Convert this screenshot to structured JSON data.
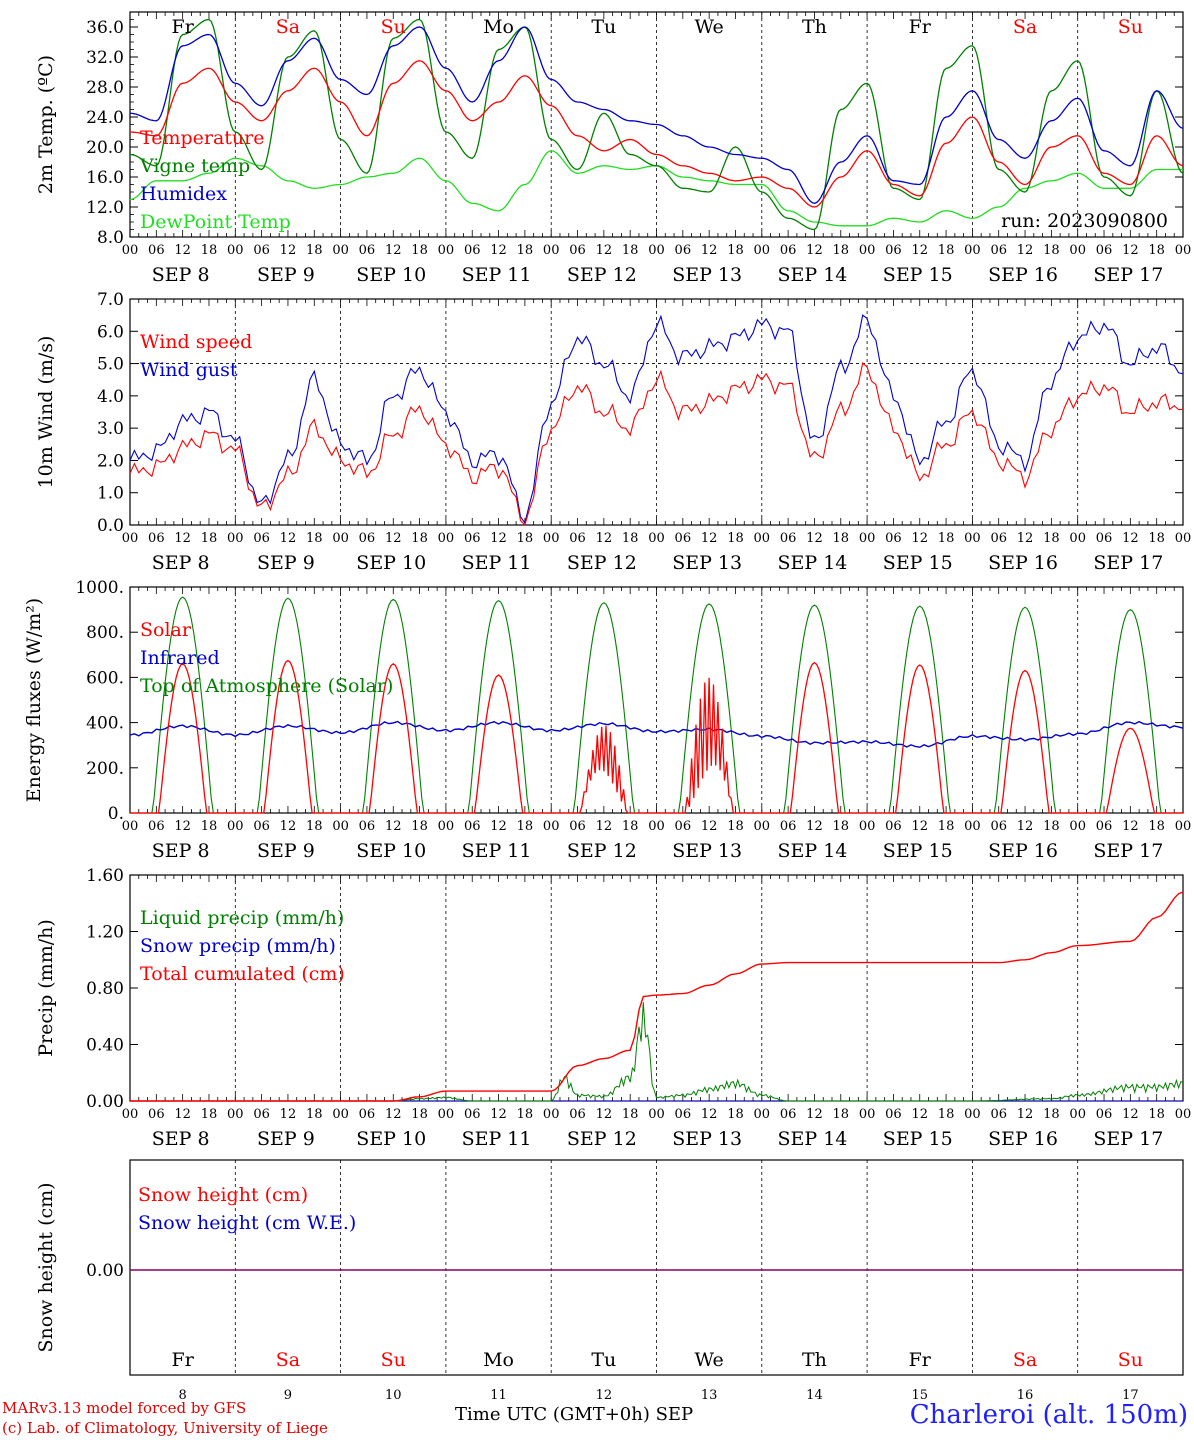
{
  "chart_data": [
    {
      "type": "line",
      "id": "temperature",
      "ylabel": "2m Temp. (ºC)",
      "ylim": [
        8.0,
        38.0
      ],
      "yticks": [
        "8.0",
        "12.0",
        "16.0",
        "20.0",
        "24.0",
        "28.0",
        "32.0",
        "36.0"
      ],
      "days": [
        "Fr",
        "Sa",
        "Su",
        "Mo",
        "Tu",
        "We",
        "Th",
        "Fr",
        "Sa",
        "Su"
      ],
      "annotation": "run: 2023090800",
      "x_hours": [
        0,
        6,
        12,
        18,
        24,
        30,
        36,
        42,
        48,
        54,
        60,
        66,
        72,
        78,
        84,
        90,
        96,
        102,
        108,
        114,
        120,
        126,
        132,
        138,
        144,
        150,
        156,
        162,
        168,
        174,
        180,
        186,
        192,
        198,
        204,
        210,
        216,
        222,
        228,
        234,
        240
      ],
      "series": [
        {
          "name": "Temperature",
          "color": "#ff0000",
          "values": [
            22.0,
            21.5,
            28.5,
            30.5,
            26.0,
            23.5,
            27.5,
            30.5,
            26.0,
            21.5,
            28.5,
            31.5,
            27.5,
            23.5,
            26.0,
            29.5,
            25.5,
            21.5,
            19.5,
            21.0,
            19.0,
            17.5,
            16.5,
            15.5,
            16.0,
            14.5,
            12.0,
            16.0,
            19.5,
            15.0,
            13.5,
            20.5,
            24.0,
            18.0,
            15.0,
            20.0,
            21.5,
            16.5,
            15.0,
            21.5,
            17.5
          ]
        },
        {
          "name": "Vigne temp",
          "color": "#008000",
          "values": [
            19.0,
            17.5,
            35.0,
            37.0,
            22.0,
            17.0,
            32.0,
            35.5,
            21.0,
            16.5,
            34.5,
            37.0,
            22.0,
            18.5,
            33.0,
            36.0,
            21.0,
            17.0,
            24.5,
            19.0,
            17.5,
            14.5,
            14.0,
            20.0,
            14.0,
            10.5,
            9.0,
            25.0,
            28.5,
            14.5,
            13.0,
            30.5,
            33.5,
            17.0,
            14.0,
            27.5,
            31.5,
            16.0,
            13.5,
            27.5,
            16.5
          ]
        },
        {
          "name": "Humidex",
          "color": "#0000cc",
          "values": [
            24.5,
            23.5,
            33.5,
            35.0,
            28.5,
            25.5,
            31.5,
            34.5,
            29.0,
            27.0,
            33.5,
            36.0,
            30.5,
            26.0,
            31.5,
            36.0,
            29.0,
            26.0,
            25.0,
            23.5,
            23.0,
            21.5,
            20.0,
            19.0,
            18.5,
            17.0,
            12.5,
            18.0,
            21.5,
            15.5,
            15.0,
            24.0,
            27.5,
            21.0,
            18.5,
            23.5,
            26.5,
            19.5,
            17.5,
            27.5,
            22.5
          ]
        },
        {
          "name": "DewPoint Temp",
          "color": "#22dd22",
          "values": [
            13.0,
            15.5,
            15.5,
            16.5,
            18.5,
            17.5,
            15.5,
            14.5,
            15.0,
            16.0,
            16.5,
            18.5,
            15.5,
            12.5,
            11.5,
            15.0,
            19.5,
            16.5,
            17.5,
            17.0,
            17.5,
            16.0,
            15.5,
            15.0,
            15.0,
            11.5,
            10.0,
            9.5,
            9.5,
            10.5,
            10.0,
            11.5,
            10.5,
            12.0,
            14.5,
            15.5,
            16.5,
            14.5,
            14.5,
            17.0,
            17.0
          ]
        }
      ]
    },
    {
      "type": "line",
      "id": "wind",
      "ylabel": "10m Wind (m/s)",
      "ylim": [
        0.0,
        7.0
      ],
      "yticks": [
        "0.0",
        "1.0",
        "2.0",
        "3.0",
        "4.0",
        "5.0",
        "6.0",
        "7.0"
      ],
      "ref_line": 5.0,
      "x_hours": [
        0,
        6,
        12,
        18,
        24,
        30,
        36,
        42,
        48,
        54,
        60,
        66,
        72,
        78,
        84,
        90,
        96,
        102,
        108,
        114,
        120,
        126,
        132,
        138,
        144,
        150,
        156,
        162,
        168,
        174,
        180,
        186,
        192,
        198,
        204,
        210,
        216,
        222,
        228,
        234,
        240
      ],
      "series": [
        {
          "name": "Wind speed",
          "color": "#ff0000",
          "values": [
            1.6,
            1.8,
            2.4,
            2.8,
            2.3,
            0.5,
            1.5,
            3.0,
            2.0,
            1.6,
            2.8,
            3.6,
            2.5,
            1.5,
            1.8,
            0.2,
            3.0,
            4.3,
            3.5,
            3.0,
            4.5,
            3.5,
            3.8,
            4.2,
            4.5,
            4.3,
            2.0,
            3.5,
            4.8,
            3.0,
            1.5,
            2.5,
            3.5,
            2.0,
            1.5,
            3.0,
            4.0,
            4.3,
            3.5,
            3.8,
            3.7
          ]
        },
        {
          "name": "Wind gust",
          "color": "#0000cc",
          "values": [
            2.0,
            2.3,
            3.2,
            3.5,
            2.6,
            0.6,
            2.0,
            4.5,
            2.5,
            2.0,
            4.0,
            4.8,
            3.5,
            2.0,
            2.2,
            0.3,
            3.8,
            5.8,
            5.0,
            4.0,
            6.2,
            5.2,
            5.5,
            5.8,
            6.2,
            6.0,
            2.5,
            4.8,
            6.3,
            4.0,
            2.0,
            3.2,
            4.8,
            2.5,
            2.0,
            4.5,
            5.8,
            6.2,
            5.0,
            5.5,
            4.8
          ]
        }
      ]
    },
    {
      "type": "line",
      "id": "energy",
      "ylabel": "Energy fluxes (W/m²)",
      "ylim": [
        0,
        1000
      ],
      "yticks": [
        "0.",
        "200.",
        "400.",
        "600.",
        "800.",
        "1000."
      ],
      "series": [
        {
          "name": "Solar",
          "color": "#ff0000",
          "peaks": [
            660,
            675,
            660,
            610,
            410,
            610,
            665,
            655,
            630,
            375
          ]
        },
        {
          "name": "Infrared",
          "color": "#0000cc",
          "x_hours": [
            0,
            12,
            24,
            36,
            48,
            60,
            72,
            84,
            96,
            108,
            120,
            132,
            144,
            156,
            168,
            180,
            192,
            204,
            216,
            228,
            240
          ],
          "values": [
            345,
            385,
            345,
            385,
            355,
            400,
            365,
            400,
            365,
            395,
            360,
            370,
            340,
            310,
            315,
            295,
            340,
            325,
            350,
            400,
            380
          ]
        },
        {
          "name": "Top of Atmosphere (Solar)",
          "color": "#008000",
          "peaks": [
            955,
            950,
            945,
            940,
            930,
            925,
            920,
            915,
            910,
            900
          ]
        }
      ]
    },
    {
      "type": "line",
      "id": "precip",
      "ylabel": "Precip (mm/h)",
      "ylim": [
        0.0,
        1.6
      ],
      "yticks": [
        "0.00",
        "0.40",
        "0.80",
        "1.20",
        "1.60"
      ],
      "series": [
        {
          "name": "Liquid precip (mm/h)",
          "color": "#008000",
          "x_hours": [
            0,
            60,
            66,
            72,
            78,
            84,
            90,
            96,
            99,
            102,
            108,
            114,
            117,
            120,
            126,
            132,
            138,
            144,
            150,
            156,
            192,
            210,
            216,
            228,
            234,
            240
          ],
          "values": [
            0,
            0,
            0.02,
            0.03,
            0.0,
            0.0,
            0.0,
            0.0,
            0.2,
            0.05,
            0.04,
            0.2,
            0.7,
            0.03,
            0.05,
            0.1,
            0.15,
            0.05,
            0.0,
            0.0,
            0.0,
            0.02,
            0.05,
            0.12,
            0.12,
            0.15
          ]
        },
        {
          "name": "Snow precip (mm/h)",
          "color": "#0000cc",
          "x_hours": [
            0,
            240
          ],
          "values": [
            0,
            0
          ]
        },
        {
          "name": "Total cumulated (cm)",
          "color": "#ff0000",
          "x_hours": [
            0,
            60,
            66,
            72,
            96,
            102,
            108,
            114,
            117,
            120,
            126,
            132,
            138,
            144,
            150,
            156,
            162,
            168,
            192,
            198,
            204,
            210,
            216,
            228,
            234,
            240
          ],
          "values": [
            0,
            0,
            0.03,
            0.07,
            0.07,
            0.25,
            0.3,
            0.36,
            0.74,
            0.75,
            0.76,
            0.82,
            0.9,
            0.97,
            0.98,
            0.98,
            0.98,
            0.98,
            0.98,
            0.98,
            1.0,
            1.05,
            1.1,
            1.13,
            1.3,
            1.48
          ]
        }
      ]
    },
    {
      "type": "line",
      "id": "snow",
      "ylabel": "Snow height (cm)",
      "yticks": [
        "0.00"
      ],
      "days": [
        "Fr",
        "Sa",
        "Su",
        "Mo",
        "Tu",
        "We",
        "Th",
        "Fr",
        "Sa",
        "Su"
      ],
      "day_numbers": [
        "8",
        "9",
        "10",
        "11",
        "12",
        "13",
        "14",
        "15",
        "16",
        "17"
      ],
      "series": [
        {
          "name": "Snow height (cm)",
          "color": "#ff0000",
          "values": [
            0.0,
            0.0
          ]
        },
        {
          "name": "Snow height (cm W.E.)",
          "color": "#0000cc",
          "values": [
            0.0,
            0.0
          ]
        }
      ]
    }
  ],
  "axis": {
    "hour_labels": [
      "00",
      "06",
      "12",
      "18"
    ],
    "final_hour_label": "00",
    "dates": [
      "SEP  8",
      "SEP  9",
      "SEP 10",
      "SEP 11",
      "SEP 12",
      "SEP 13",
      "SEP 14",
      "SEP 15",
      "SEP 16",
      "SEP 17"
    ],
    "weekend_color": "#ff0000",
    "weekday_color": "#000000",
    "weekend_days": [
      "Sa",
      "Su"
    ]
  },
  "footer": {
    "model_line": "MARv3.13 model forced by GFS",
    "copyright_line": "(c) Lab. of Climatology, University of Liege",
    "time_label": "Time UTC (GMT+0h) SEP",
    "station": "Charleroi (alt. 150m)"
  }
}
